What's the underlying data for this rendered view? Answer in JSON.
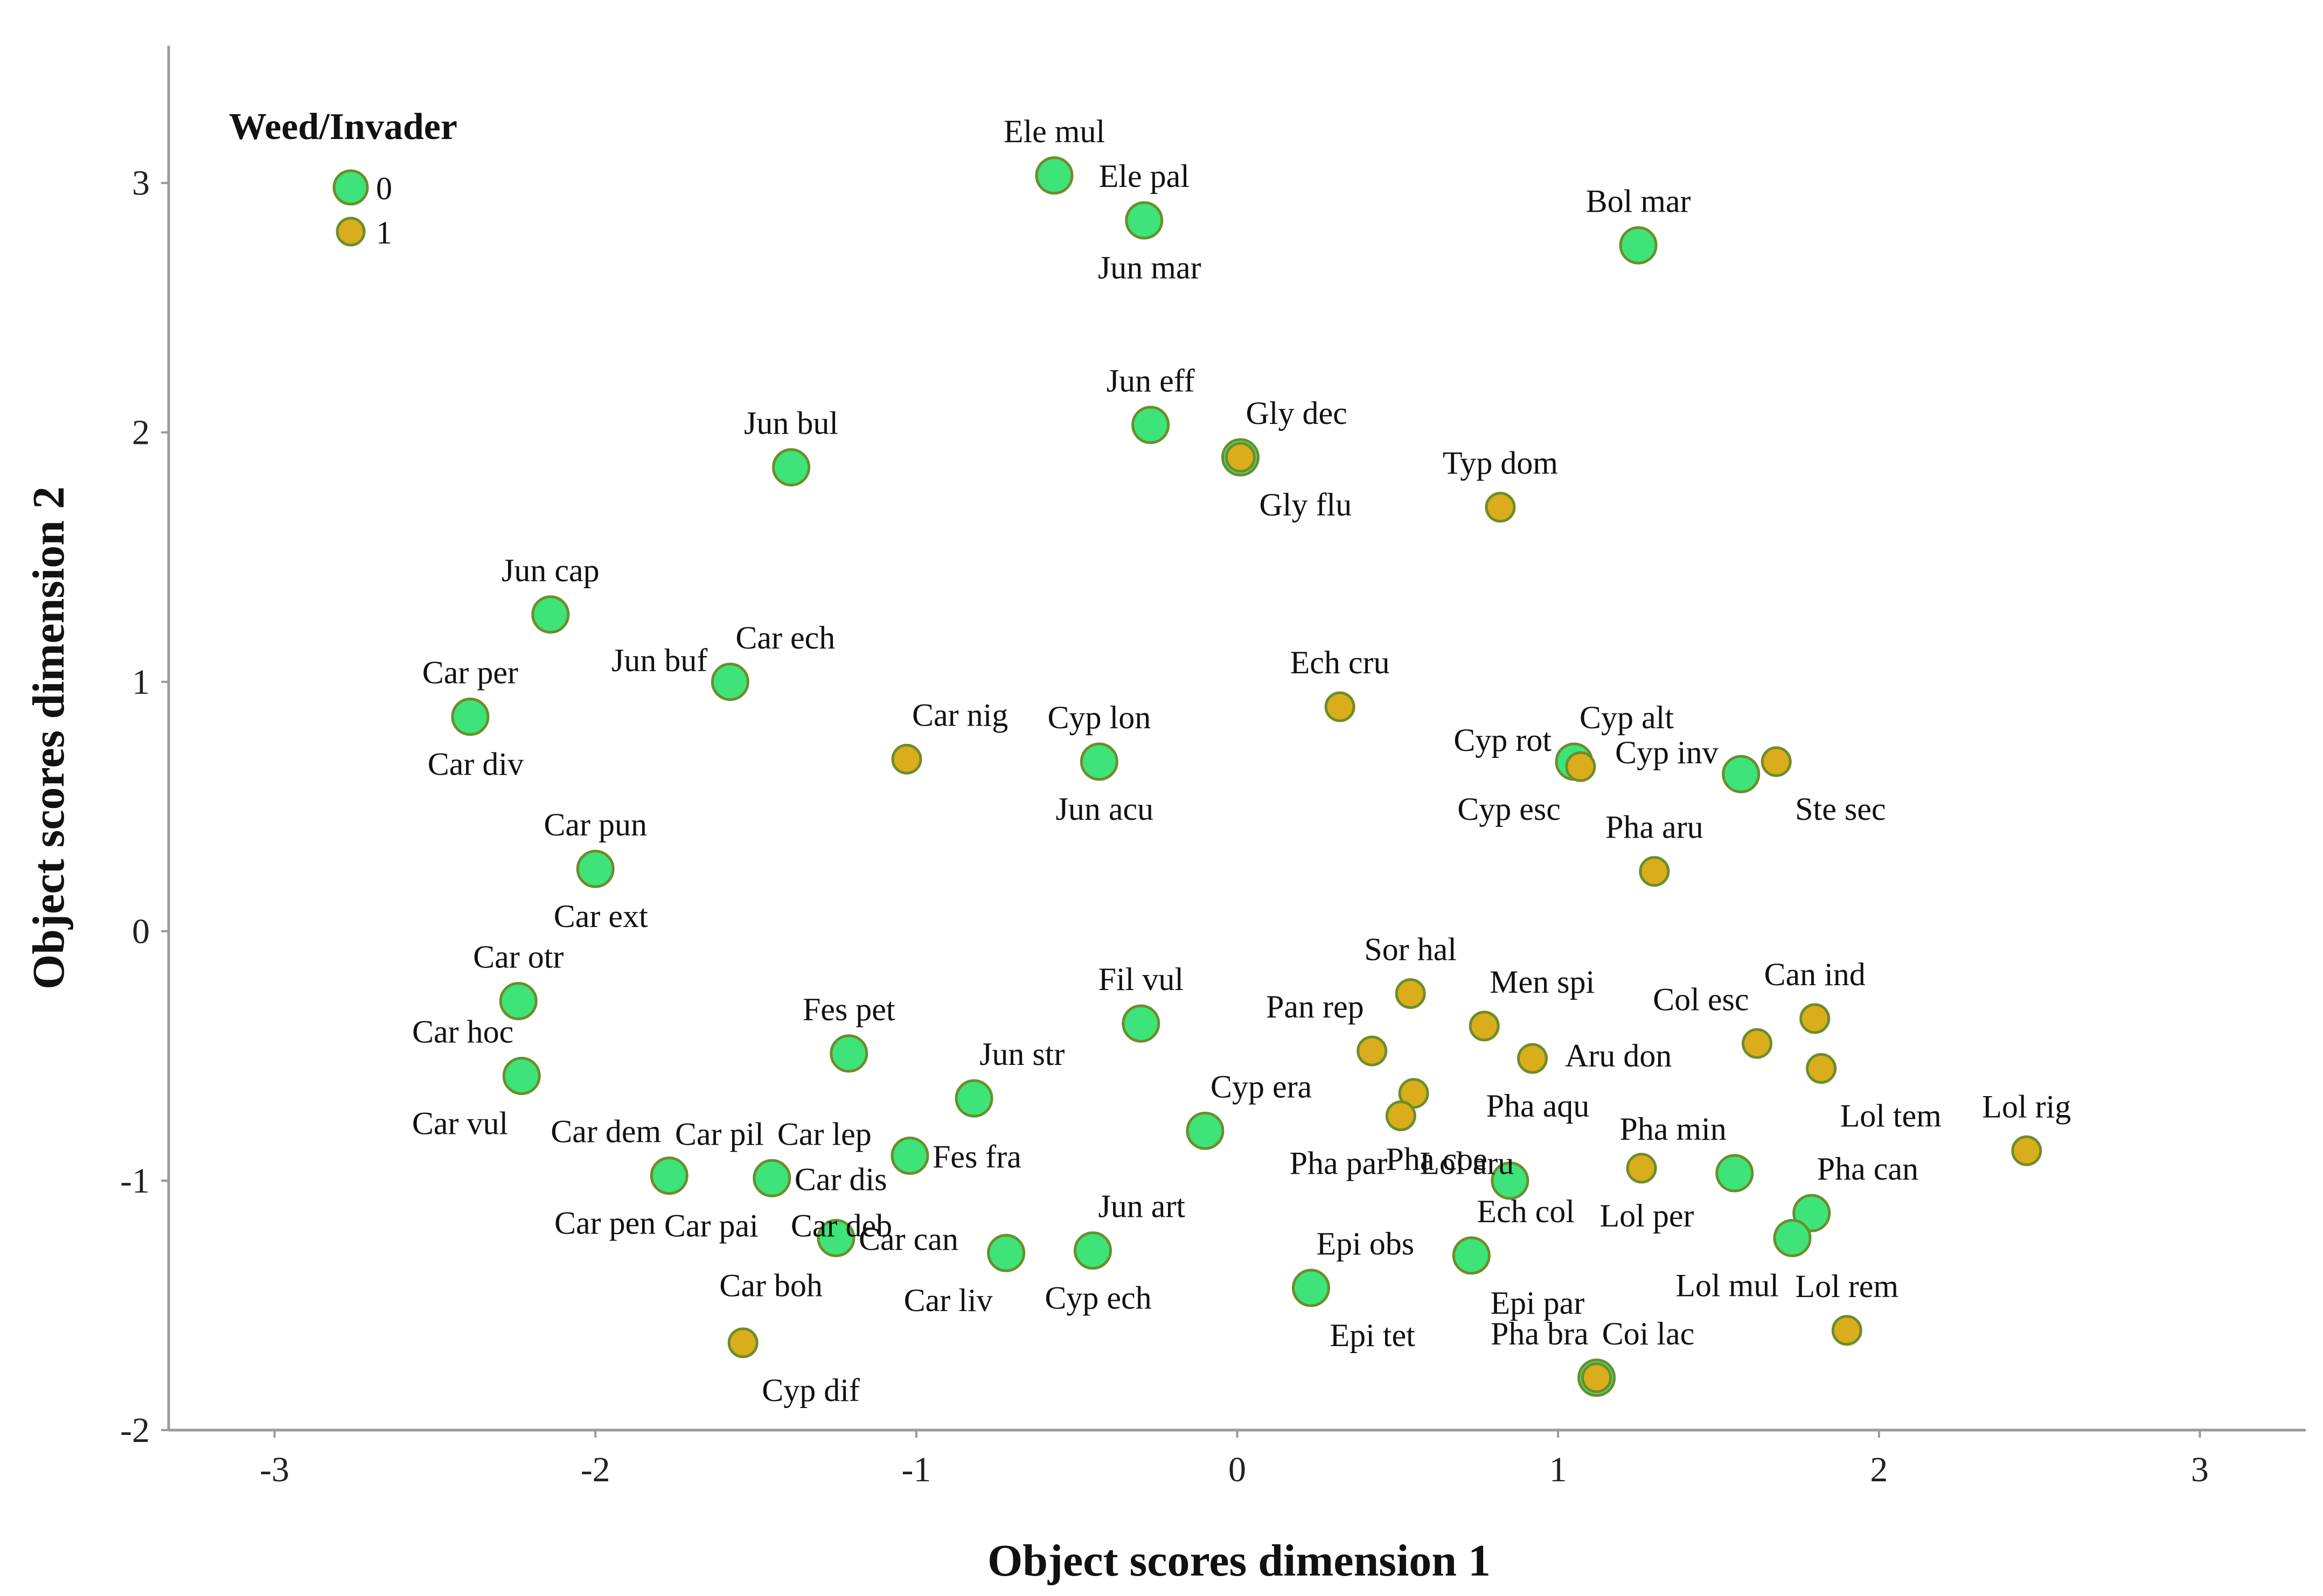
{
  "chart_data": {
    "type": "scatter",
    "title": "",
    "xlabel": "Object scores dimension 1",
    "ylabel": "Object scores dimension 2",
    "xlim": [
      -3.33,
      3.33
    ],
    "ylim": [
      -2,
      3.55
    ],
    "xticks": [
      -3,
      -2,
      -1,
      0,
      1,
      2,
      3
    ],
    "yticks": [
      -2,
      -1,
      0,
      1,
      2,
      3
    ],
    "legend": {
      "title": "Weed/Invader",
      "placement": "top-left",
      "entries": [
        {
          "label": "0",
          "color": "#3ee37a"
        },
        {
          "label": "1",
          "color": "#d9ad1c"
        }
      ]
    },
    "colors": {
      "0": "#3ee37a",
      "1": "#d9ad1c",
      "stroke": "#6b8e2a"
    },
    "series": [
      {
        "name": "0",
        "points": [
          {
            "x": -0.57,
            "y": 3.03,
            "label": "Ele mul",
            "lpos": "above"
          },
          {
            "x": -0.29,
            "y": 2.85,
            "label": "Ele pal",
            "lpos": "above"
          },
          {
            "x": -0.29,
            "y": 2.85,
            "label": "Jun mar",
            "lpos": "below"
          },
          {
            "x": 1.25,
            "y": 2.75,
            "label": "Bol mar",
            "lpos": "above"
          },
          {
            "x": -0.27,
            "y": 2.03,
            "label": "Jun eff",
            "lpos": "above"
          },
          {
            "x": 0.01,
            "y": 1.9,
            "label": "Gly flu",
            "lpos": "belowright"
          },
          {
            "x": -1.39,
            "y": 1.86,
            "label": "Jun bul",
            "lpos": "above"
          },
          {
            "x": -2.14,
            "y": 1.27,
            "label": "Jun cap",
            "lpos": "above"
          },
          {
            "x": -1.58,
            "y": 1.0,
            "label": "Jun buf",
            "lpos": "left"
          },
          {
            "x": -1.58,
            "y": 1.0,
            "label": "Car ech",
            "lpos": "aboveright"
          },
          {
            "x": -2.39,
            "y": 0.86,
            "label": "Car per",
            "lpos": "above"
          },
          {
            "x": -2.39,
            "y": 0.86,
            "label": "Car div",
            "lpos": "below"
          },
          {
            "x": -0.43,
            "y": 0.68,
            "label": "Cyp lon",
            "lpos": "above"
          },
          {
            "x": -0.43,
            "y": 0.68,
            "label": "Jun acu",
            "lpos": "below"
          },
          {
            "x": 1.05,
            "y": 0.68,
            "label": "Cyp rot",
            "lpos": "left"
          },
          {
            "x": 1.05,
            "y": 0.68,
            "label": "Cyp alt",
            "lpos": "aboveright"
          },
          {
            "x": 1.05,
            "y": 0.68,
            "label": "Cyp esc",
            "lpos": "belowleft"
          },
          {
            "x": 1.57,
            "y": 0.63,
            "label": "Cyp inv",
            "lpos": "left"
          },
          {
            "x": -2.0,
            "y": 0.25,
            "label": "Car pun",
            "lpos": "above"
          },
          {
            "x": -2.0,
            "y": 0.25,
            "label": "Car ext",
            "lpos": "below"
          },
          {
            "x": -2.24,
            "y": -0.28,
            "label": "Car otr",
            "lpos": "above"
          },
          {
            "x": -0.3,
            "y": -0.37,
            "label": "Fil vul",
            "lpos": "above"
          },
          {
            "x": -1.21,
            "y": -0.49,
            "label": "Fes pet",
            "lpos": "above"
          },
          {
            "x": -2.23,
            "y": -0.58,
            "label": "Car hoc",
            "lpos": "aboveleft"
          },
          {
            "x": -2.23,
            "y": -0.58,
            "label": "Car vul",
            "lpos": "belowleft"
          },
          {
            "x": -0.82,
            "y": -0.67,
            "label": "Jun str",
            "lpos": "aboveright"
          },
          {
            "x": -0.1,
            "y": -0.8,
            "label": "Cyp era",
            "lpos": "aboveright"
          },
          {
            "x": -1.02,
            "y": -0.9,
            "label": "Fes fra",
            "lpos": "right"
          },
          {
            "x": -1.77,
            "y": -0.98,
            "label": "Car dem",
            "lpos": "aboveleft"
          },
          {
            "x": -1.77,
            "y": -0.98,
            "label": "Car pen",
            "lpos": "belowleft"
          },
          {
            "x": -1.45,
            "y": -0.99,
            "label": "Car pil",
            "lpos": "aboveleft"
          },
          {
            "x": -1.45,
            "y": -0.99,
            "label": "Car lep",
            "lpos": "aboveright"
          },
          {
            "x": -1.45,
            "y": -0.99,
            "label": "Car dis",
            "lpos": "right"
          },
          {
            "x": -1.45,
            "y": -0.99,
            "label": "Car deb",
            "lpos": "belowright"
          },
          {
            "x": -1.45,
            "y": -0.99,
            "label": "Car pai",
            "lpos": "belowleft"
          },
          {
            "x": 0.85,
            "y": -1.0,
            "label": "Pha coe",
            "lpos": "left"
          },
          {
            "x": 1.55,
            "y": -0.97,
            "label": "Pha min",
            "lpos": "aboveleft"
          },
          {
            "x": 1.79,
            "y": -1.13,
            "label": "Pha can",
            "lpos": "aboveright"
          },
          {
            "x": 1.73,
            "y": -1.23,
            "label": "Lol mul",
            "lpos": "belowleft"
          },
          {
            "x": -1.25,
            "y": -1.23,
            "label": "Car can",
            "lpos": "right"
          },
          {
            "x": -1.25,
            "y": -1.23,
            "label": "Car boh",
            "lpos": "belowleft"
          },
          {
            "x": -0.72,
            "y": -1.29,
            "label": "Car liv",
            "lpos": "belowleft"
          },
          {
            "x": -0.45,
            "y": -1.28,
            "label": "Jun art",
            "lpos": "aboveright"
          },
          {
            "x": -0.45,
            "y": -1.28,
            "label": "Cyp ech",
            "lpos": "below"
          },
          {
            "x": 0.73,
            "y": -1.3,
            "label": "Ech col",
            "lpos": "aboveright"
          },
          {
            "x": 0.73,
            "y": -1.3,
            "label": "Epi par",
            "lpos": "belowright"
          },
          {
            "x": 0.23,
            "y": -1.43,
            "label": "Epi obs",
            "lpos": "aboveright"
          },
          {
            "x": 0.23,
            "y": -1.43,
            "label": "Epi tet",
            "lpos": "belowright"
          },
          {
            "x": 1.12,
            "y": -1.79,
            "label": "Pha bra",
            "lpos": "aboveleft"
          }
        ]
      },
      {
        "name": "1",
        "points": [
          {
            "x": 0.01,
            "y": 1.9,
            "label": "Gly dec",
            "lpos": "aboveright"
          },
          {
            "x": 0.82,
            "y": 1.7,
            "label": "Typ dom",
            "lpos": "above"
          },
          {
            "x": 0.32,
            "y": 0.9,
            "label": "Ech cru",
            "lpos": "above"
          },
          {
            "x": -1.03,
            "y": 0.69,
            "label": "Car nig",
            "lpos": "aboveright"
          },
          {
            "x": 1.07,
            "y": 0.66,
            "label": "",
            "lpos": "none"
          },
          {
            "x": 1.68,
            "y": 0.68,
            "label": "Ste sec",
            "lpos": "belowright"
          },
          {
            "x": 1.3,
            "y": 0.24,
            "label": "Pha aru",
            "lpos": "above"
          },
          {
            "x": 0.54,
            "y": -0.25,
            "label": "Sor hal",
            "lpos": "above"
          },
          {
            "x": 1.8,
            "y": -0.35,
            "label": "Can ind",
            "lpos": "above"
          },
          {
            "x": 0.77,
            "y": -0.38,
            "label": "Men spi",
            "lpos": "aboveright"
          },
          {
            "x": 1.62,
            "y": -0.45,
            "label": "Col esc",
            "lpos": "aboveleft"
          },
          {
            "x": 0.42,
            "y": -0.48,
            "label": "Pan rep",
            "lpos": "aboveleft"
          },
          {
            "x": 0.92,
            "y": -0.51,
            "label": "Pha aqu",
            "lpos": "below"
          },
          {
            "x": 1.82,
            "y": -0.55,
            "label": "Lol tem",
            "lpos": "belowright"
          },
          {
            "x": 0.55,
            "y": -0.65,
            "label": "Aru don",
            "lpos": "offright"
          },
          {
            "x": 0.51,
            "y": -0.74,
            "label": "Pha par",
            "lpos": "belowleft"
          },
          {
            "x": 0.51,
            "y": -0.74,
            "label": "Lol aru",
            "lpos": "belowright"
          },
          {
            "x": 2.46,
            "y": -0.88,
            "label": "Lol rig",
            "lpos": "above"
          },
          {
            "x": 1.26,
            "y": -0.95,
            "label": "Lol per",
            "lpos": "below"
          },
          {
            "x": -1.54,
            "y": -1.65,
            "label": "Cyp dif",
            "lpos": "belowright"
          },
          {
            "x": 1.9,
            "y": -1.6,
            "label": "Lol rem",
            "lpos": "above"
          },
          {
            "x": 1.12,
            "y": -1.79,
            "label": "Coi lac",
            "lpos": "aboveright"
          }
        ]
      }
    ]
  }
}
